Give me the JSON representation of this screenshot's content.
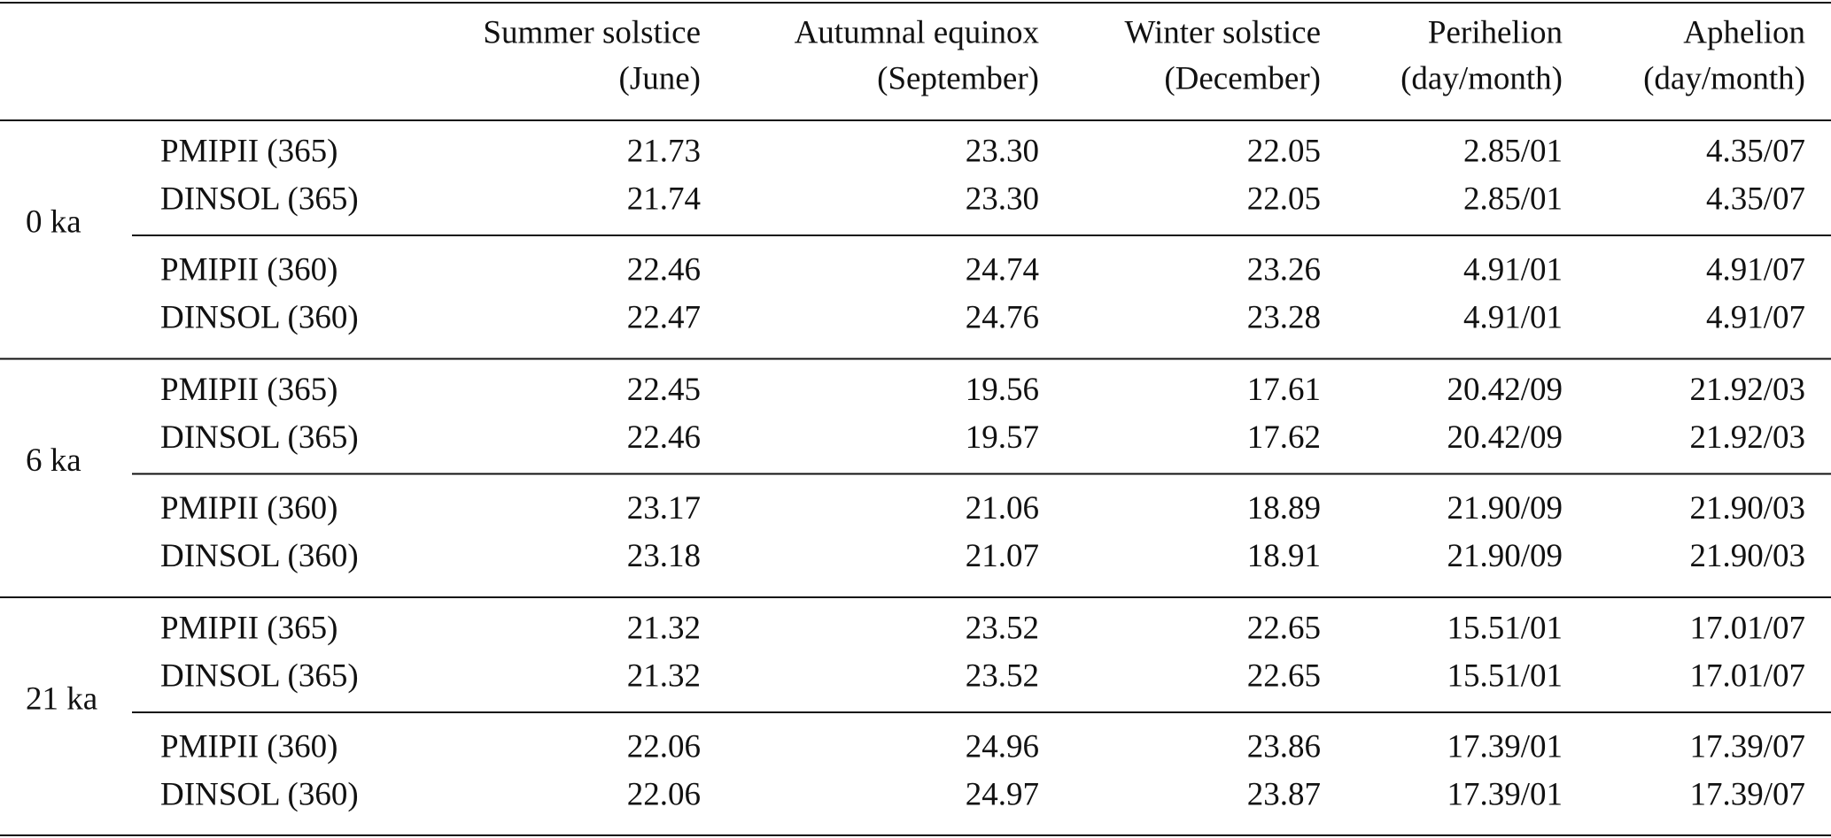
{
  "table": {
    "columns": [
      [
        "Summer solstice",
        "(June)"
      ],
      [
        "Autumnal equinox",
        "(September)"
      ],
      [
        "Winter solstice",
        "(December)"
      ],
      [
        "Perihelion",
        "(day/month)"
      ],
      [
        "Aphelion",
        "(day/month)"
      ]
    ],
    "groups": [
      {
        "label": "0 ka",
        "subgroups": [
          [
            {
              "name": "PMIPII (365)",
              "cells": [
                "21.73",
                "23.30",
                "22.05",
                "2.85/01",
                "4.35/07"
              ]
            },
            {
              "name": "DINSOL (365)",
              "cells": [
                "21.74",
                "23.30",
                "22.05",
                "2.85/01",
                "4.35/07"
              ]
            }
          ],
          [
            {
              "name": "PMIPII (360)",
              "cells": [
                "22.46",
                "24.74",
                "23.26",
                "4.91/01",
                "4.91/07"
              ]
            },
            {
              "name": "DINSOL (360)",
              "cells": [
                "22.47",
                "24.76",
                "23.28",
                "4.91/01",
                "4.91/07"
              ]
            }
          ]
        ]
      },
      {
        "label": "6 ka",
        "subgroups": [
          [
            {
              "name": "PMIPII (365)",
              "cells": [
                "22.45",
                "19.56",
                "17.61",
                "20.42/09",
                "21.92/03"
              ]
            },
            {
              "name": "DINSOL (365)",
              "cells": [
                "22.46",
                "19.57",
                "17.62",
                "20.42/09",
                "21.92/03"
              ]
            }
          ],
          [
            {
              "name": "PMIPII (360)",
              "cells": [
                "23.17",
                "21.06",
                "18.89",
                "21.90/09",
                "21.90/03"
              ]
            },
            {
              "name": "DINSOL (360)",
              "cells": [
                "23.18",
                "21.07",
                "18.91",
                "21.90/09",
                "21.90/03"
              ]
            }
          ]
        ]
      },
      {
        "label": "21 ka",
        "subgroups": [
          [
            {
              "name": "PMIPII (365)",
              "cells": [
                "21.32",
                "23.52",
                "22.65",
                "15.51/01",
                "17.01/07"
              ]
            },
            {
              "name": "DINSOL (365)",
              "cells": [
                "21.32",
                "23.52",
                "22.65",
                "15.51/01",
                "17.01/07"
              ]
            }
          ],
          [
            {
              "name": "PMIPII (360)",
              "cells": [
                "22.06",
                "24.96",
                "23.86",
                "17.39/01",
                "17.39/07"
              ]
            },
            {
              "name": "DINSOL (360)",
              "cells": [
                "22.06",
                "24.97",
                "23.87",
                "17.39/01",
                "17.39/07"
              ]
            }
          ]
        ]
      }
    ]
  }
}
